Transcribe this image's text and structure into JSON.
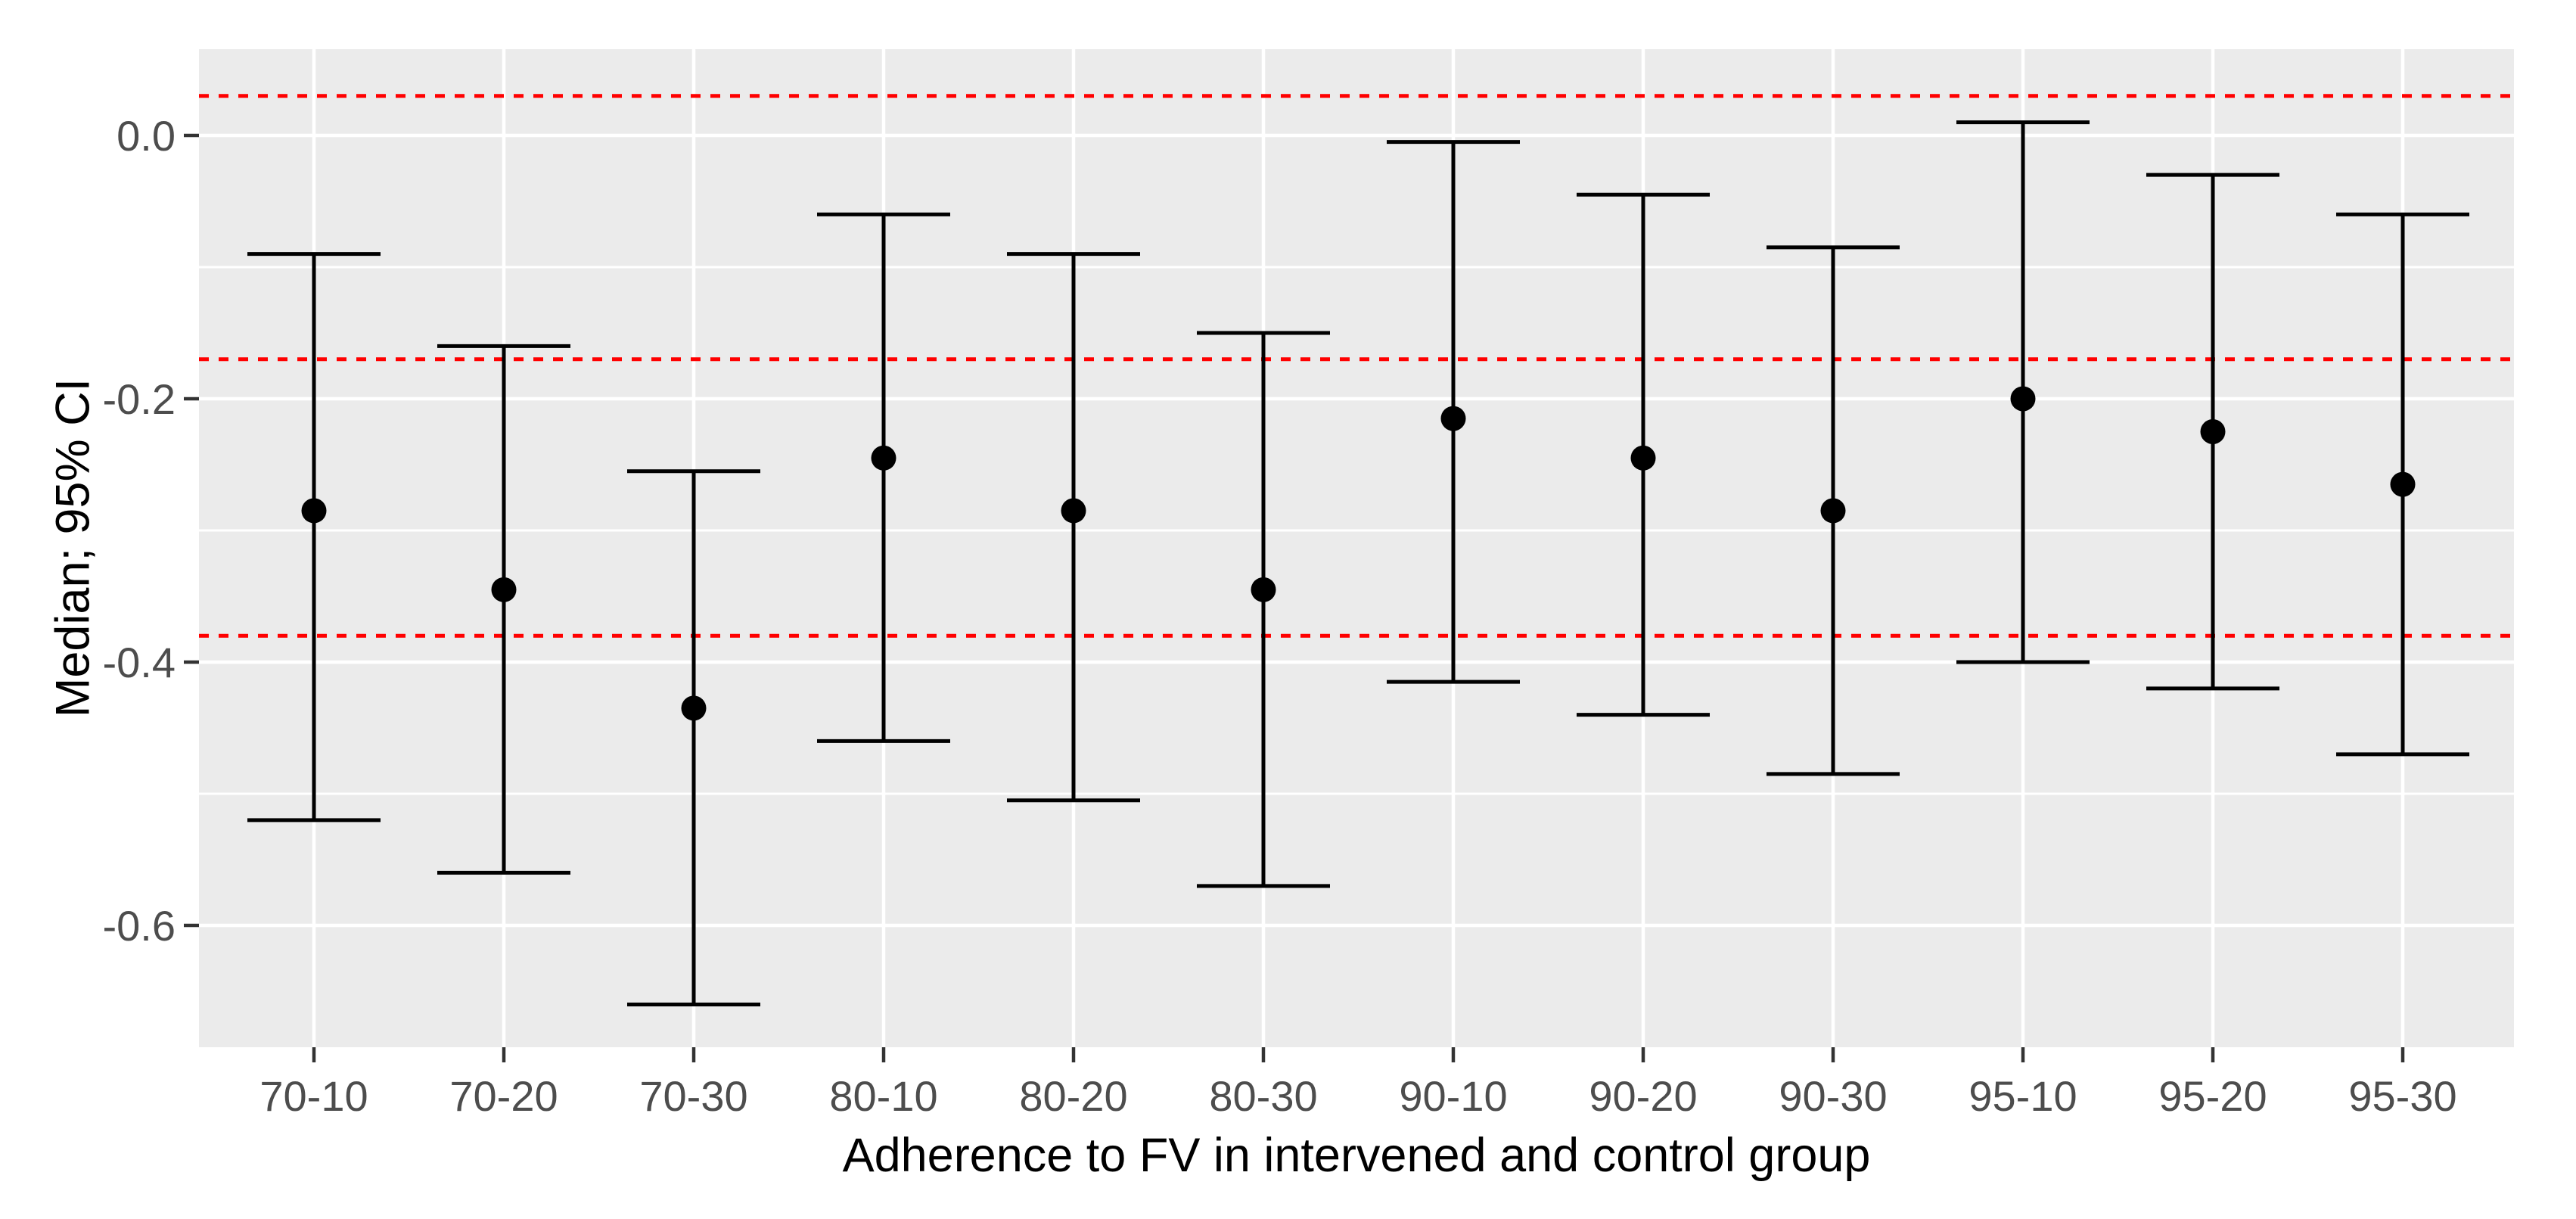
{
  "chart_data": {
    "type": "errorbar",
    "title": "",
    "xlabel": "Adherence to FV in intervened and control group",
    "ylabel": "Median; 95% CI",
    "categories": [
      "70-10",
      "70-20",
      "70-30",
      "80-10",
      "80-20",
      "80-30",
      "90-10",
      "90-20",
      "90-30",
      "95-10",
      "95-20",
      "95-30"
    ],
    "series": [
      {
        "name": "Median with 95% CI",
        "medians": [
          -0.285,
          -0.345,
          -0.435,
          -0.245,
          -0.285,
          -0.345,
          -0.215,
          -0.245,
          -0.285,
          -0.2,
          -0.225,
          -0.265
        ],
        "lower": [
          -0.52,
          -0.56,
          -0.66,
          -0.46,
          -0.505,
          -0.57,
          -0.415,
          -0.44,
          -0.485,
          -0.4,
          -0.42,
          -0.47
        ],
        "upper": [
          -0.09,
          -0.16,
          -0.255,
          -0.06,
          -0.09,
          -0.15,
          -0.005,
          -0.045,
          -0.085,
          0.01,
          -0.03,
          -0.06
        ]
      }
    ],
    "reference_lines": {
      "values": [
        0.03,
        -0.17,
        -0.38
      ],
      "style": "dotted",
      "color": "#FF0000"
    },
    "y_axis": {
      "tick_values": [
        0.0,
        -0.2,
        -0.4,
        -0.6
      ],
      "tick_labels": [
        "0.0",
        "-0.2",
        "-0.4",
        "-0.6"
      ],
      "minor_gridlines": [
        -0.1,
        -0.3,
        -0.5
      ],
      "range": {
        "min": -0.6925,
        "max": 0.0655
      }
    },
    "x_axis": {
      "tick_labels": [
        "70-10",
        "70-20",
        "70-30",
        "80-10",
        "80-20",
        "80-30",
        "90-10",
        "90-20",
        "90-30",
        "95-10",
        "95-20",
        "95-30"
      ]
    },
    "legend": {
      "visible": false
    },
    "grid": {
      "horizontal_major": true,
      "horizontal_minor": true,
      "vertical_major": true
    },
    "colors": {
      "panel_background": "#EBEBEB",
      "gridline": "#FFFFFF",
      "errorbar": "#000000",
      "point": "#000000",
      "reference_line": "#FF0000",
      "axis_text": "#4D4D4D",
      "axis_title": "#000000",
      "tick_mark": "#333333"
    }
  }
}
